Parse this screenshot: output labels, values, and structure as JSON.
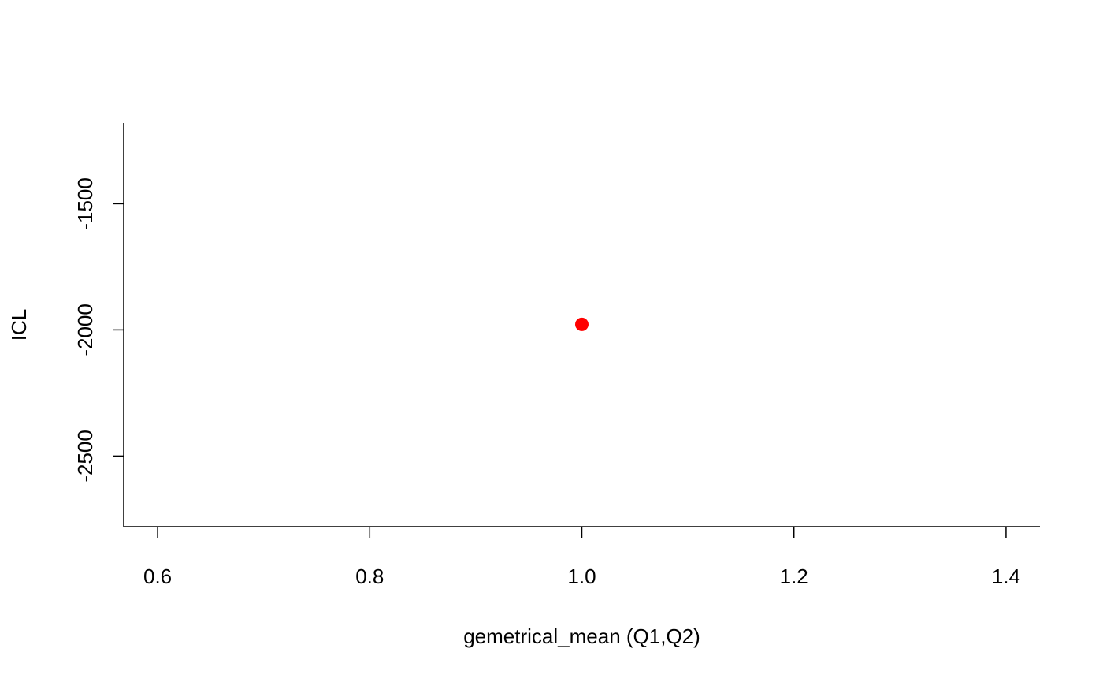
{
  "chart_data": {
    "type": "scatter",
    "title": "",
    "xlabel": "gemetrical_mean (Q1,Q2)",
    "ylabel": "ICL",
    "xlim": [
      0.568,
      1.432
    ],
    "ylim": [
      -2780,
      -1180
    ],
    "grid": false,
    "x_ticks": [
      {
        "value": 0.6,
        "label": "0.6"
      },
      {
        "value": 0.8,
        "label": "0.8"
      },
      {
        "value": 1.0,
        "label": "1.0"
      },
      {
        "value": 1.2,
        "label": "1.2"
      },
      {
        "value": 1.4,
        "label": "1.4"
      }
    ],
    "y_ticks": [
      {
        "value": -1500,
        "label": "-1500"
      },
      {
        "value": -2000,
        "label": "-2000"
      },
      {
        "value": -2500,
        "label": "-2500"
      }
    ],
    "series": [
      {
        "color": "#ff0000",
        "points": [
          {
            "x": 1.0,
            "y": -1978
          }
        ]
      }
    ]
  }
}
